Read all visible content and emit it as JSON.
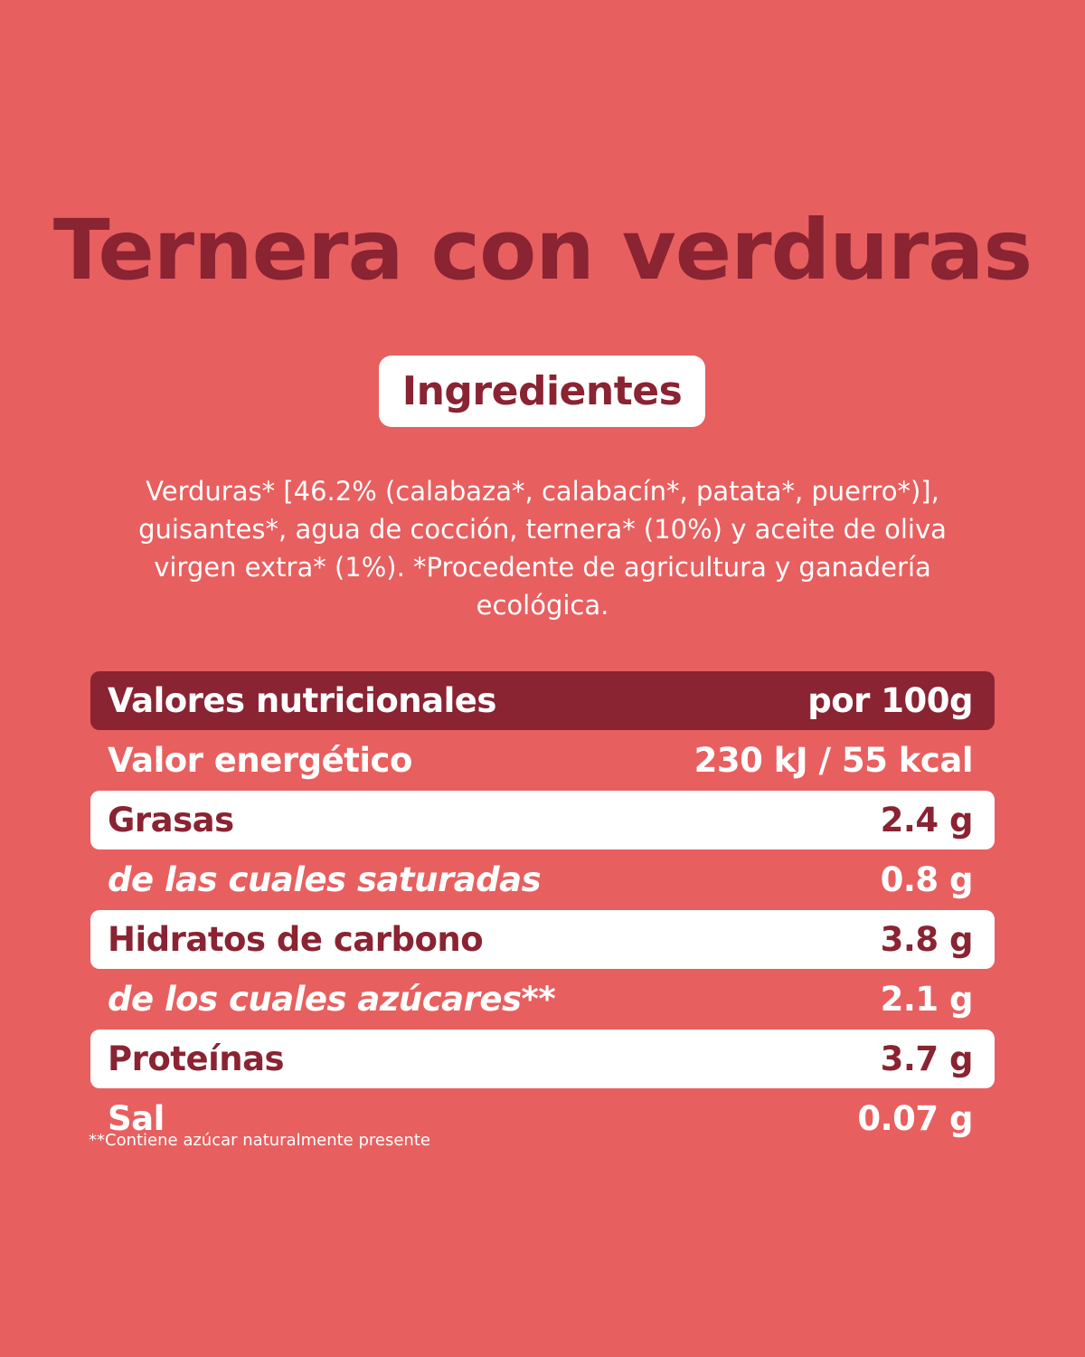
{
  "title": "Ternera con verduras",
  "ingredients": {
    "heading": "Ingredientes",
    "text": "Verduras* [46.2% (calabaza*, calabacín*, patata*, puerro*)], guisantes*, agua de cocción, ternera* (10%) y aceite de oliva virgen extra* (1%). *Procedente de agricultura y ganadería ecológica."
  },
  "nutrition": {
    "header": {
      "label": "Valores nutricionales",
      "value": "por 100g"
    },
    "rows": [
      {
        "label": "Valor energético",
        "value": "230 kJ / 55 kcal"
      },
      {
        "label": "Grasas",
        "value": "2.4 g"
      },
      {
        "label": "de las cuales saturadas",
        "value": "0.8 g"
      },
      {
        "label": "Hidratos de carbono",
        "value": "3.8 g"
      },
      {
        "label": "de los cuales azúcares**",
        "value": "2.1 g"
      },
      {
        "label": "Proteínas",
        "value": "3.7 g"
      },
      {
        "label": "Sal",
        "value": "0.07 g"
      }
    ]
  },
  "footnote": "**Contiene azúcar naturalmente presente",
  "colors": {
    "background": "#e85f5f",
    "accent": "#8a2332",
    "box": "#ffffff"
  }
}
